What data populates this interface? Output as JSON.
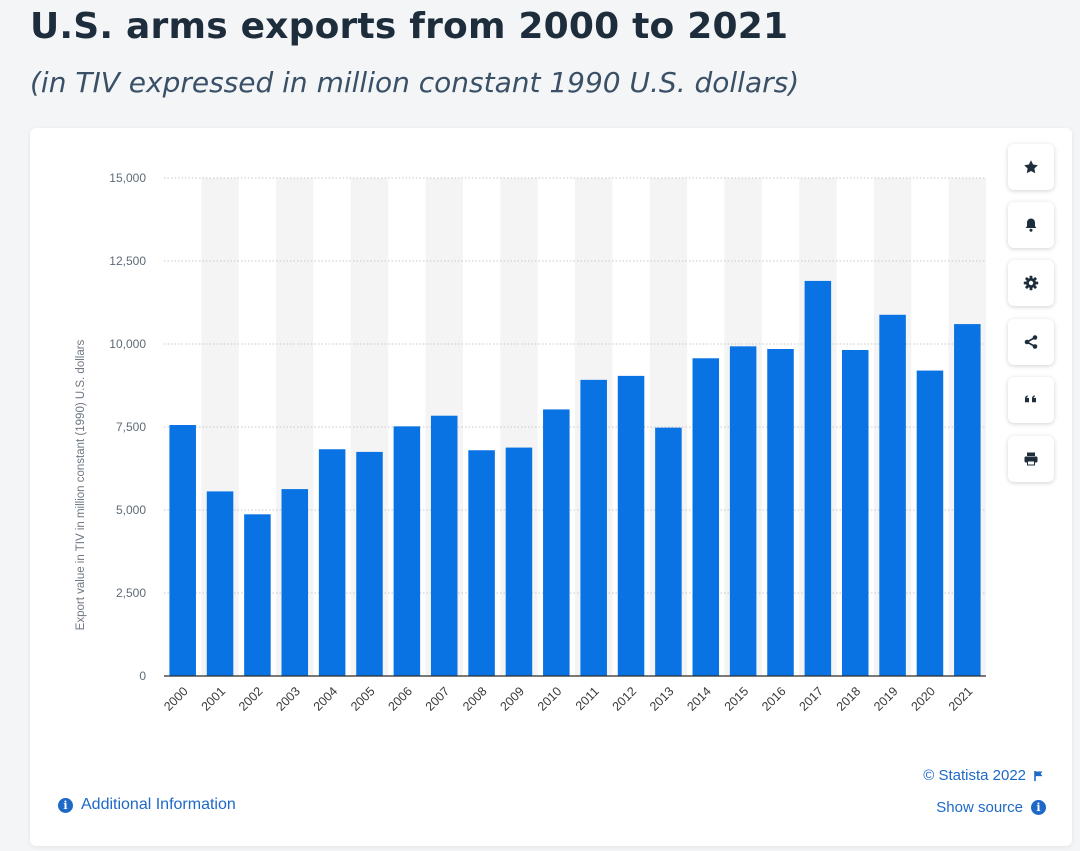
{
  "header": {
    "title": "U.S. arms exports from 2000 to 2021",
    "subtitle": "(in TIV expressed in million constant 1990 U.S. dollars)"
  },
  "colors": {
    "bar": "#0a73e4",
    "band": "#f4f4f4",
    "grid": "#c8c8c8",
    "link": "#1e69c8",
    "title": "#1e2d3c"
  },
  "toolbar": {
    "icons": [
      "star-icon",
      "bell-icon",
      "gear-icon",
      "share-icon",
      "quote-icon",
      "print-icon"
    ]
  },
  "footer": {
    "additional_info": "Additional Information",
    "copyright": "© Statista 2022",
    "show_source": "Show source"
  },
  "chart_data": {
    "type": "bar",
    "title": "U.S. arms exports from 2000 to 2021",
    "subtitle": "(in TIV expressed in million constant 1990 U.S. dollars)",
    "xlabel": "",
    "ylabel": "Export value in TIV in million constant (1990) U.S. dollars",
    "ylim": [
      0,
      15000
    ],
    "yticks": [
      0,
      2500,
      5000,
      7500,
      10000,
      12500,
      15000
    ],
    "ytick_labels": [
      "0",
      "2,500",
      "5,000",
      "7,500",
      "10,000",
      "12,500",
      "15,000"
    ],
    "grid": true,
    "legend": "none",
    "categories": [
      "2000",
      "2001",
      "2002",
      "2003",
      "2004",
      "2005",
      "2006",
      "2007",
      "2008",
      "2009",
      "2010",
      "2011",
      "2012",
      "2013",
      "2014",
      "2015",
      "2016",
      "2017",
      "2018",
      "2019",
      "2020",
      "2021"
    ],
    "values": [
      7560,
      5560,
      4870,
      5630,
      6830,
      6750,
      7520,
      7840,
      6800,
      6880,
      8030,
      8920,
      9040,
      7480,
      9570,
      9930,
      9850,
      11900,
      9820,
      10880,
      9200,
      10600
    ]
  }
}
